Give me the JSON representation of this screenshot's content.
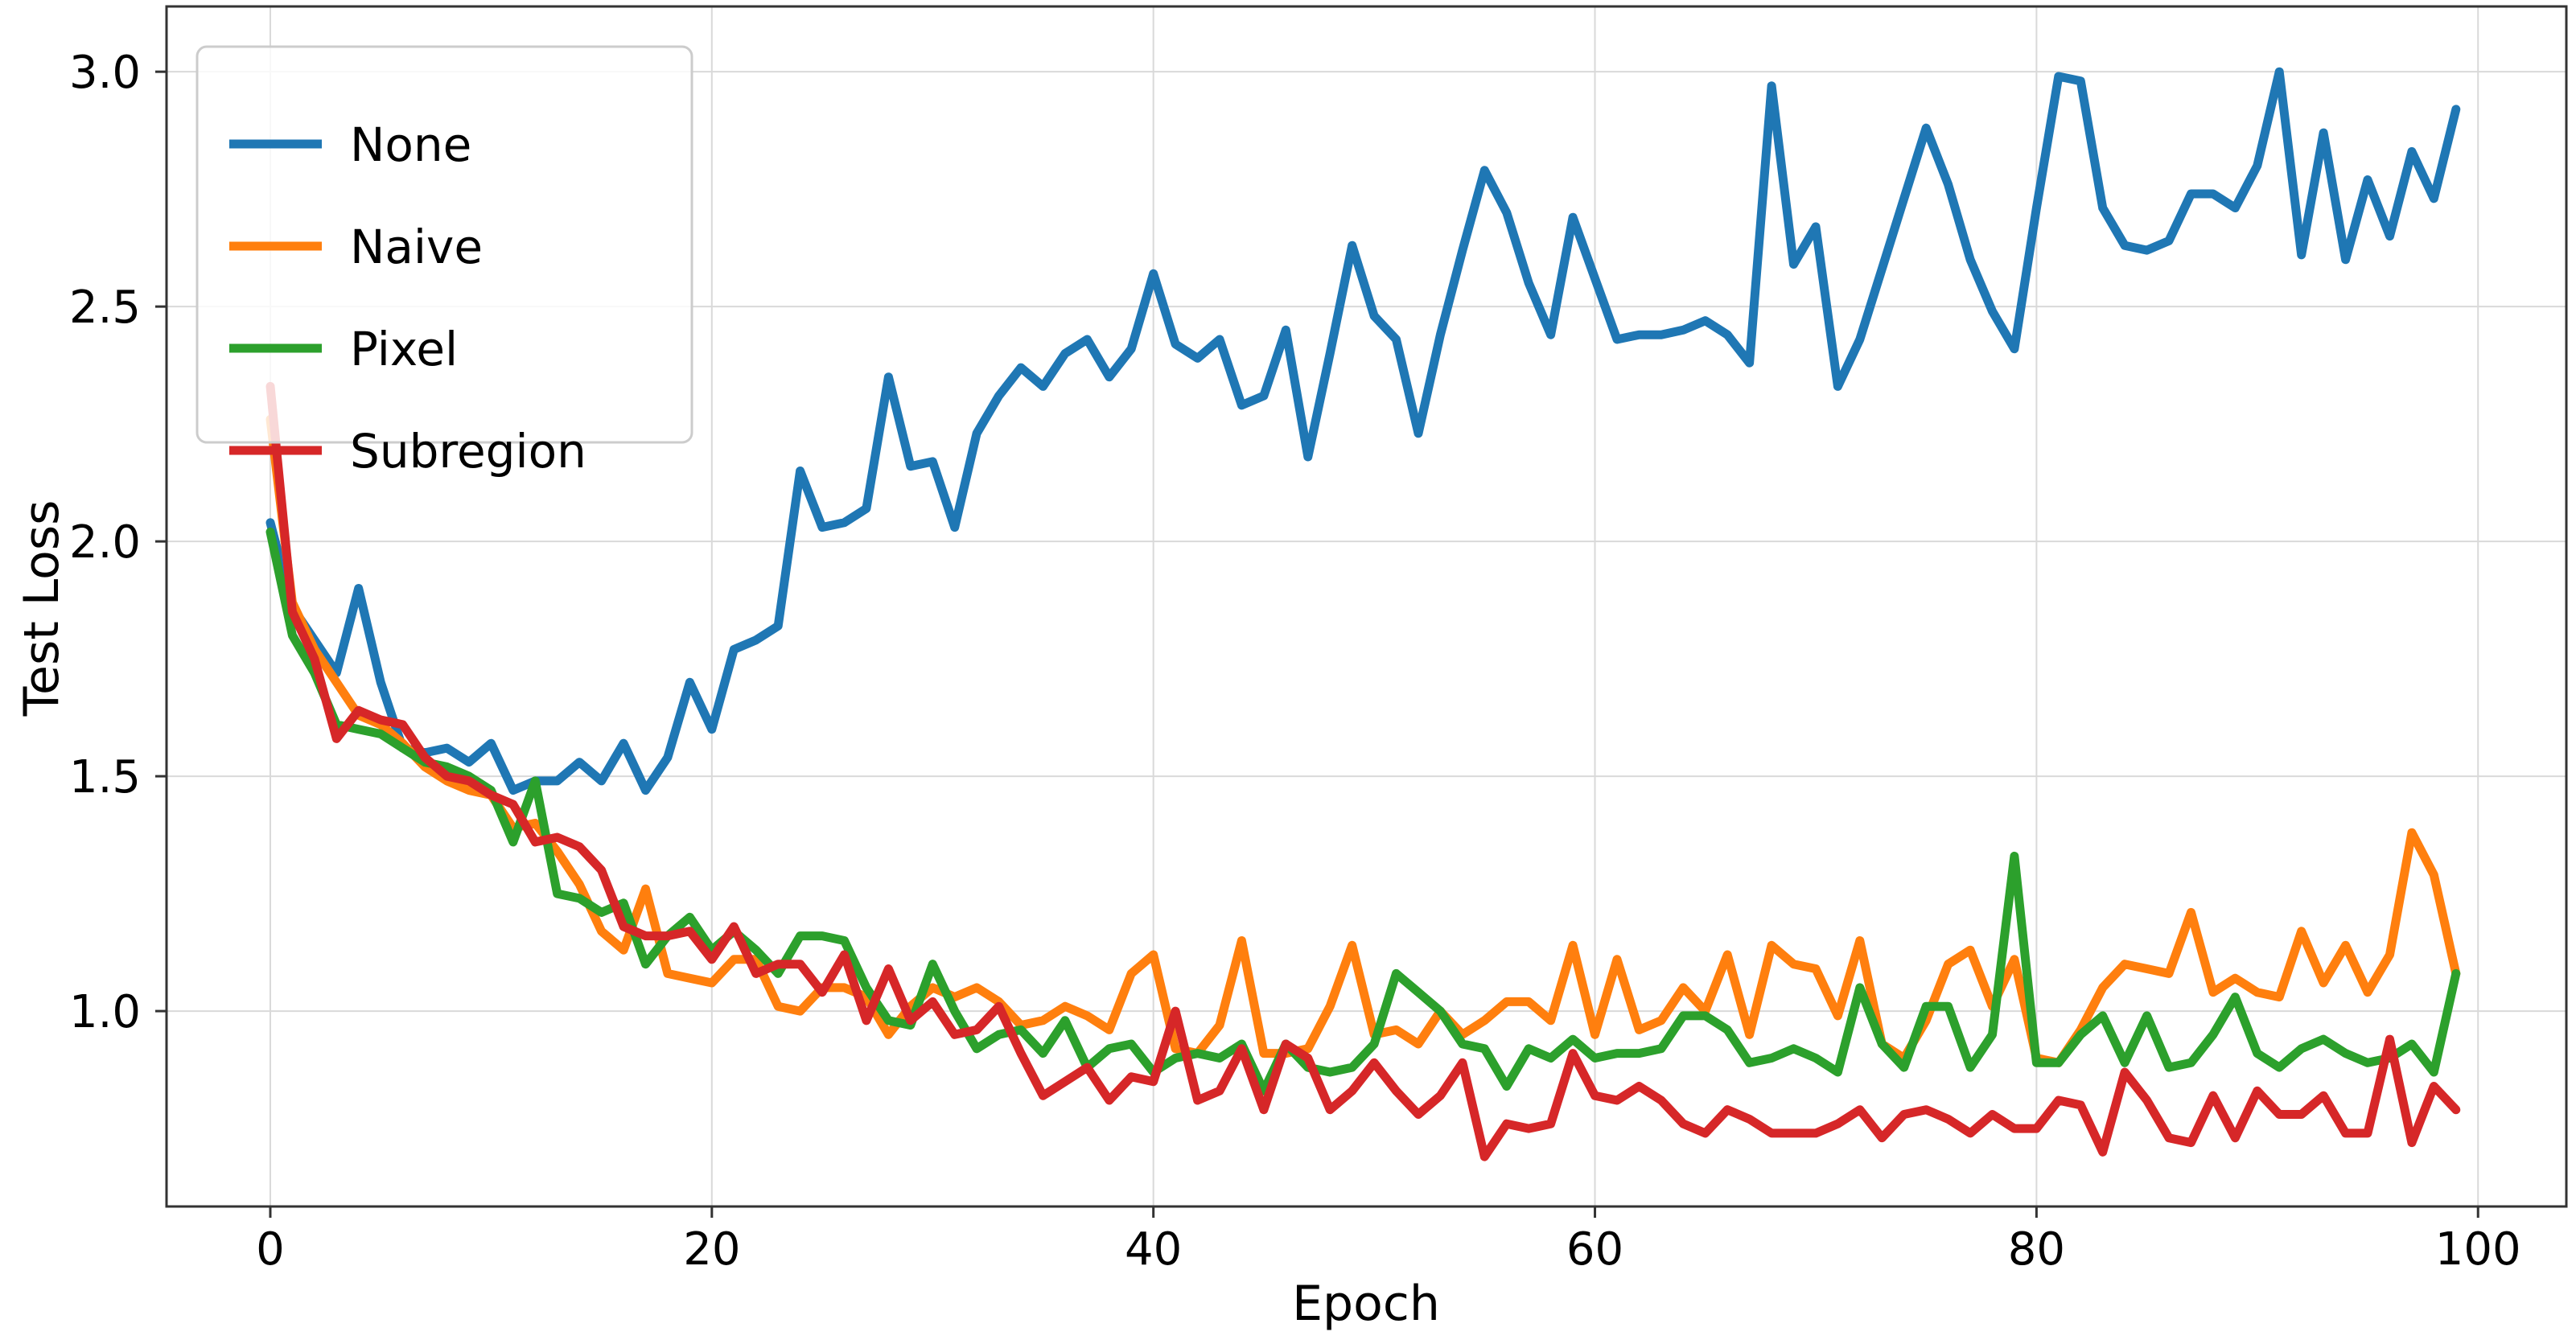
{
  "figure": {
    "kind": "matplotlib-line-plot",
    "background": "#ffffff"
  },
  "chart_data": {
    "type": "line",
    "title": "",
    "xlabel": "Epoch",
    "ylabel": "Test Loss",
    "x_range": [
      0,
      99
    ],
    "x_step": 1,
    "xlim": [
      -4.7,
      104.0
    ],
    "ylim": [
      0.584,
      3.139
    ],
    "x_ticks": [
      0,
      20,
      40,
      60,
      80,
      100
    ],
    "y_ticks": [
      1.0,
      1.5,
      2.0,
      2.5,
      3.0
    ],
    "grid": true,
    "legend_position": "upper-left",
    "series": [
      {
        "name": "None",
        "color": "#1f77b4",
        "values": [
          2.04,
          1.86,
          1.79,
          1.72,
          1.9,
          1.7,
          1.56,
          1.55,
          1.56,
          1.53,
          1.57,
          1.47,
          1.49,
          1.49,
          1.53,
          1.49,
          1.57,
          1.47,
          1.54,
          1.7,
          1.6,
          1.77,
          1.79,
          1.82,
          2.15,
          2.03,
          2.04,
          2.07,
          2.35,
          2.16,
          2.17,
          2.03,
          2.23,
          2.31,
          2.37,
          2.33,
          2.4,
          2.43,
          2.35,
          2.41,
          2.57,
          2.42,
          2.39,
          2.43,
          2.29,
          2.31,
          2.45,
          2.18,
          2.4,
          2.63,
          2.48,
          2.43,
          2.23,
          2.44,
          2.62,
          2.79,
          2.7,
          2.55,
          2.44,
          2.69,
          2.56,
          2.43,
          2.44,
          2.44,
          2.45,
          2.47,
          2.44,
          2.38,
          2.97,
          2.59,
          2.67,
          2.33,
          2.43,
          2.58,
          2.73,
          2.88,
          2.76,
          2.6,
          2.49,
          2.41,
          2.71,
          2.99,
          2.98,
          2.71,
          2.63,
          2.62,
          2.64,
          2.74,
          2.74,
          2.71,
          2.8,
          3.0,
          2.61,
          2.87,
          2.6,
          2.77,
          2.65,
          2.83,
          2.73,
          2.92
        ]
      },
      {
        "name": "Naive",
        "color": "#ff7f0e",
        "values": [
          2.26,
          1.87,
          1.77,
          1.7,
          1.63,
          1.61,
          1.57,
          1.52,
          1.49,
          1.47,
          1.46,
          1.39,
          1.4,
          1.34,
          1.27,
          1.17,
          1.13,
          1.26,
          1.08,
          1.07,
          1.06,
          1.11,
          1.11,
          1.01,
          1.0,
          1.05,
          1.05,
          1.03,
          0.95,
          1.01,
          1.05,
          1.03,
          1.05,
          1.02,
          0.97,
          0.98,
          1.01,
          0.99,
          0.96,
          1.08,
          1.12,
          0.92,
          0.91,
          0.97,
          1.15,
          0.91,
          0.91,
          0.92,
          1.01,
          1.14,
          0.95,
          0.96,
          0.93,
          1.0,
          0.95,
          0.98,
          1.02,
          1.02,
          0.98,
          1.14,
          0.95,
          1.11,
          0.96,
          0.98,
          1.05,
          1.0,
          1.12,
          0.95,
          1.14,
          1.1,
          1.09,
          0.99,
          1.15,
          0.93,
          0.9,
          0.98,
          1.1,
          1.13,
          1.01,
          1.11,
          0.9,
          0.89,
          0.96,
          1.05,
          1.1,
          1.09,
          1.08,
          1.21,
          1.04,
          1.07,
          1.04,
          1.03,
          1.17,
          1.06,
          1.14,
          1.04,
          1.12,
          1.38,
          1.29,
          1.08
        ]
      },
      {
        "name": "Pixel",
        "color": "#2ca02c",
        "values": [
          2.02,
          1.8,
          1.72,
          1.61,
          1.6,
          1.59,
          1.56,
          1.53,
          1.52,
          1.5,
          1.47,
          1.36,
          1.49,
          1.25,
          1.24,
          1.21,
          1.23,
          1.1,
          1.16,
          1.2,
          1.13,
          1.17,
          1.13,
          1.08,
          1.16,
          1.16,
          1.15,
          1.05,
          0.98,
          0.97,
          1.1,
          1.0,
          0.92,
          0.95,
          0.96,
          0.91,
          0.98,
          0.88,
          0.92,
          0.93,
          0.87,
          0.9,
          0.91,
          0.9,
          0.93,
          0.83,
          0.93,
          0.88,
          0.87,
          0.88,
          0.93,
          1.08,
          1.04,
          1.0,
          0.93,
          0.92,
          0.84,
          0.92,
          0.9,
          0.94,
          0.9,
          0.91,
          0.91,
          0.92,
          0.99,
          0.99,
          0.96,
          0.89,
          0.9,
          0.92,
          0.9,
          0.87,
          1.05,
          0.93,
          0.88,
          1.01,
          1.01,
          0.88,
          0.95,
          1.33,
          0.89,
          0.89,
          0.95,
          0.99,
          0.89,
          0.99,
          0.88,
          0.89,
          0.95,
          1.03,
          0.91,
          0.88,
          0.92,
          0.94,
          0.91,
          0.89,
          0.9,
          0.93,
          0.87,
          1.08
        ]
      },
      {
        "name": "Subregion",
        "color": "#d62728",
        "values": [
          2.33,
          1.85,
          1.75,
          1.58,
          1.64,
          1.62,
          1.61,
          1.54,
          1.5,
          1.49,
          1.46,
          1.44,
          1.36,
          1.37,
          1.35,
          1.3,
          1.18,
          1.16,
          1.16,
          1.17,
          1.11,
          1.18,
          1.08,
          1.1,
          1.1,
          1.04,
          1.12,
          0.98,
          1.09,
          0.98,
          1.02,
          0.95,
          0.96,
          1.01,
          0.91,
          0.82,
          0.85,
          0.88,
          0.81,
          0.86,
          0.85,
          1.0,
          0.81,
          0.83,
          0.92,
          0.79,
          0.93,
          0.9,
          0.79,
          0.83,
          0.89,
          0.83,
          0.78,
          0.82,
          0.89,
          0.69,
          0.76,
          0.75,
          0.76,
          0.91,
          0.82,
          0.81,
          0.84,
          0.81,
          0.76,
          0.74,
          0.79,
          0.77,
          0.74,
          0.74,
          0.74,
          0.76,
          0.79,
          0.73,
          0.78,
          0.79,
          0.77,
          0.74,
          0.78,
          0.75,
          0.75,
          0.81,
          0.8,
          0.7,
          0.87,
          0.81,
          0.73,
          0.72,
          0.82,
          0.73,
          0.83,
          0.78,
          0.78,
          0.82,
          0.74,
          0.74,
          0.94,
          0.72,
          0.84,
          0.79
        ]
      }
    ]
  },
  "style": {
    "grid_color": "#d9d9d9",
    "spine_color": "#333333",
    "tick_color": "#333333",
    "text_color": "#000000",
    "line_width": 11,
    "legend_border_color": "#cccccc",
    "legend_fill": "rgba(255,255,255,0.82)"
  }
}
